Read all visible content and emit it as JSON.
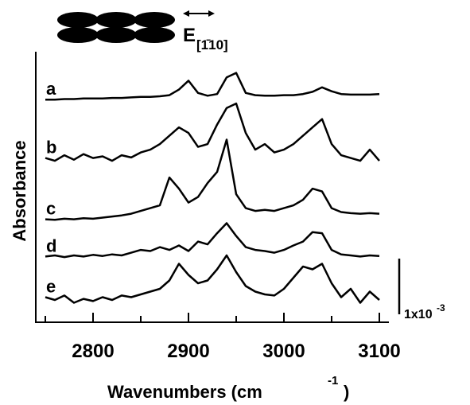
{
  "chart_data": {
    "type": "line",
    "x_label": "Wavenumbers (cm",
    "x_label_sup": "-1",
    "x_label_end": ")",
    "y_label": "Absorbance",
    "polarization": "E",
    "polarization_sub": "[1̄10]",
    "x": [
      2750,
      2760,
      2770,
      2780,
      2790,
      2800,
      2810,
      2820,
      2830,
      2840,
      2850,
      2860,
      2870,
      2880,
      2890,
      2900,
      2910,
      2920,
      2930,
      2940,
      2950,
      2960,
      2970,
      2980,
      2990,
      3000,
      3010,
      3020,
      3030,
      3040,
      3050,
      3060,
      3070,
      3080,
      3090,
      3100
    ],
    "series": [
      {
        "name": "a",
        "color": "#000000",
        "values": [
          4.0,
          4.0,
          4.01,
          4.01,
          4.02,
          4.02,
          4.02,
          4.03,
          4.03,
          4.04,
          4.05,
          4.05,
          4.06,
          4.08,
          4.18,
          4.34,
          4.12,
          4.07,
          4.1,
          4.4,
          4.48,
          4.12,
          4.08,
          4.07,
          4.07,
          4.08,
          4.08,
          4.1,
          4.14,
          4.22,
          4.15,
          4.1,
          4.09,
          4.09,
          4.09,
          4.1
        ]
      },
      {
        "name": "b",
        "color": "#000000",
        "values": [
          2.95,
          2.9,
          3.0,
          2.92,
          3.02,
          2.95,
          2.98,
          2.9,
          3.0,
          2.96,
          3.05,
          3.1,
          3.2,
          3.35,
          3.5,
          3.4,
          3.15,
          3.2,
          3.55,
          3.85,
          3.93,
          3.4,
          3.1,
          3.2,
          3.05,
          3.1,
          3.2,
          3.35,
          3.5,
          3.65,
          3.2,
          3.0,
          2.95,
          2.9,
          3.1,
          2.9
        ]
      },
      {
        "name": "c",
        "color": "#000000",
        "values": [
          1.85,
          1.84,
          1.86,
          1.85,
          1.87,
          1.86,
          1.88,
          1.9,
          1.92,
          1.95,
          2.0,
          2.05,
          2.1,
          2.6,
          2.4,
          2.15,
          2.25,
          2.5,
          2.7,
          3.28,
          2.3,
          2.05,
          2.0,
          2.02,
          2.0,
          2.05,
          2.1,
          2.2,
          2.4,
          2.35,
          2.05,
          1.98,
          1.96,
          1.95,
          1.96,
          1.95
        ]
      },
      {
        "name": "d",
        "color": "#000000",
        "values": [
          1.18,
          1.2,
          1.17,
          1.2,
          1.18,
          1.21,
          1.19,
          1.22,
          1.2,
          1.25,
          1.3,
          1.28,
          1.35,
          1.3,
          1.38,
          1.28,
          1.45,
          1.4,
          1.6,
          1.78,
          1.55,
          1.35,
          1.3,
          1.28,
          1.25,
          1.3,
          1.38,
          1.45,
          1.62,
          1.6,
          1.3,
          1.22,
          1.2,
          1.18,
          1.2,
          1.19
        ]
      },
      {
        "name": "e",
        "color": "#000000",
        "values": [
          0.45,
          0.4,
          0.48,
          0.35,
          0.42,
          0.38,
          0.45,
          0.4,
          0.48,
          0.45,
          0.5,
          0.55,
          0.6,
          0.75,
          1.05,
          0.85,
          0.7,
          0.75,
          0.95,
          1.2,
          0.9,
          0.65,
          0.55,
          0.5,
          0.48,
          0.6,
          0.8,
          1.0,
          0.95,
          1.05,
          0.7,
          0.45,
          0.6,
          0.35,
          0.55,
          0.4
        ]
      }
    ],
    "xlim": [
      2740,
      3110
    ],
    "xticks": [
      2800,
      2900,
      3000,
      3100
    ],
    "xminorticks": [
      2750,
      2850,
      2950,
      3050
    ],
    "ylim": [
      0,
      4.86
    ],
    "scale_bar": {
      "value": 1,
      "label": "1x10",
      "exponent": "-3"
    }
  }
}
